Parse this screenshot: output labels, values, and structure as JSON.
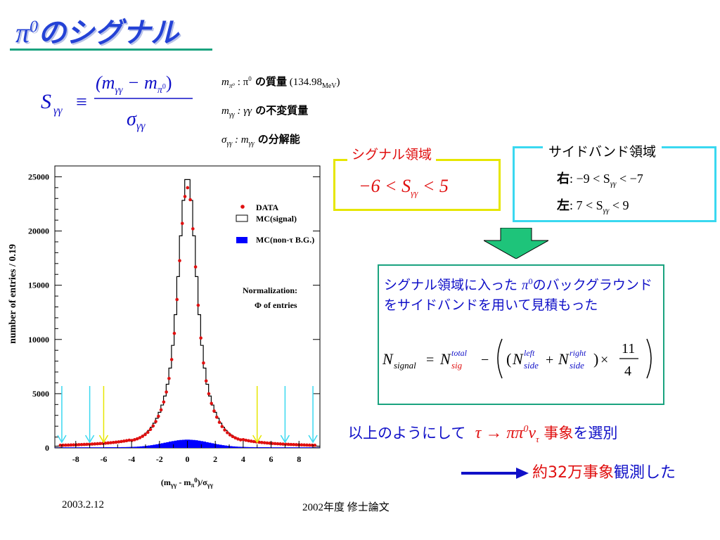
{
  "title": {
    "text": "のシグナル",
    "symbol": "π",
    "superscript": "0"
  },
  "definitions": {
    "s_lhs": "S",
    "s_sub": "γγ",
    "equiv": "≡",
    "numerator": "(m",
    "numerator_sub1": "γγ",
    "numerator_mid": " − m",
    "numerator_sub2": "π",
    "numerator_sup2": "0",
    "numerator_close": ")",
    "denominator": "σ",
    "denominator_sub": "γγ",
    "line1_sym": "m",
    "line1_sub": "π⁰",
    "line1_colon": " : π",
    "line1_sup": "0",
    "line1_text": " の質量",
    "line1_value": " (134.98",
    "line1_unit": "MeV",
    "line1_close": ")",
    "line2_sym": "m",
    "line2_sub": "γγ",
    "line2_colon": " : γγ",
    "line2_text": " の不変質量",
    "line3_sym": "σ",
    "line3_sub": "γγ",
    "line3_colon": " : m",
    "line3_sub2": "γγ",
    "line3_text": " の分解能"
  },
  "signal_region": {
    "title": "シグナル領域",
    "formula_left": "−6 < S",
    "formula_sub": "γγ",
    "formula_right": " < 5"
  },
  "sideband_region": {
    "title": "サイドバンド領域",
    "right_label": "右",
    "right_formula": ": −9 < S",
    "right_sub": "γγ",
    "right_tail": " < −7",
    "left_label": "左",
    "left_formula": ": 7 < S",
    "left_sub": "γγ",
    "left_tail": " < 9"
  },
  "estimate": {
    "text1": "シグナル領域に入った ",
    "text_pi": "π",
    "text_sup": "0",
    "text2": "のバックグラウンドをサイドバンドを用いて見積もった",
    "formula": {
      "n": "N",
      "signal": "signal",
      "eq": "=",
      "total": "total",
      "sig": "sig",
      "minus": "−",
      "left": "left",
      "right": "right",
      "side": "side",
      "plus": "+",
      "times": "×",
      "num": "11",
      "den": "4"
    }
  },
  "conclusion": {
    "text1": "以上のようにして",
    "process_tau": "τ → ππ",
    "process_sup": "0",
    "process_nu": "ν",
    "process_nu_sub": "τ",
    "text2": " 事象",
    "text3": "を選別"
  },
  "events": {
    "text": "約32万事象",
    "text2": "観測した"
  },
  "footer": {
    "date": "2003.2.12",
    "thesis": "2002年度 修士論文"
  },
  "colors": {
    "title": "#2442d6",
    "signal": "#e01010",
    "sideband": "#3ad8f0",
    "signal_box": "#e6e600",
    "estimate_box": "#1aa37f",
    "text_blue": "#1010c8",
    "arrow_green": "#1ec47a",
    "bg_fill": "#0000ff",
    "data_points": "#e01010"
  },
  "chart_data": {
    "type": "histogram",
    "ylabel": "number of entries  / 0.19",
    "xlabel": "(m",
    "xlabel_sub1": "γγ",
    "xlabel_mid": " - m",
    "xlabel_sub2": "π",
    "xlabel_sup": "0",
    "xlabel_tail": ")/σ",
    "xlabel_sub3": "γγ",
    "xlim": [
      -9.5,
      9.5
    ],
    "ylim": [
      0,
      26000
    ],
    "x_ticks": [
      -8,
      -6,
      -4,
      -2,
      0,
      2,
      4,
      6,
      8
    ],
    "y_ticks": [
      0,
      5000,
      10000,
      15000,
      20000,
      25000
    ],
    "y_tick_labels": [
      "0",
      "5000",
      "10000",
      "15000",
      "20000",
      "25000"
    ],
    "x_tick_labels": [
      "-8",
      "-6",
      "-4",
      "-2",
      "0",
      "2",
      "4",
      "6",
      "8"
    ],
    "legend": {
      "data": "DATA",
      "mc_signal": "MC(signal)",
      "mc_bg": "MC(non-τ B.G.)"
    },
    "normalization_title": "Normalization:",
    "normalization_text": "Φ of entries",
    "signal_lines": [
      -6,
      5
    ],
    "sideband_lines": [
      -9,
      -7,
      7,
      9
    ],
    "bin_width": 0.19,
    "mc_signal_peak": 25000,
    "data_peak": 24000,
    "bg_peak": 700
  }
}
